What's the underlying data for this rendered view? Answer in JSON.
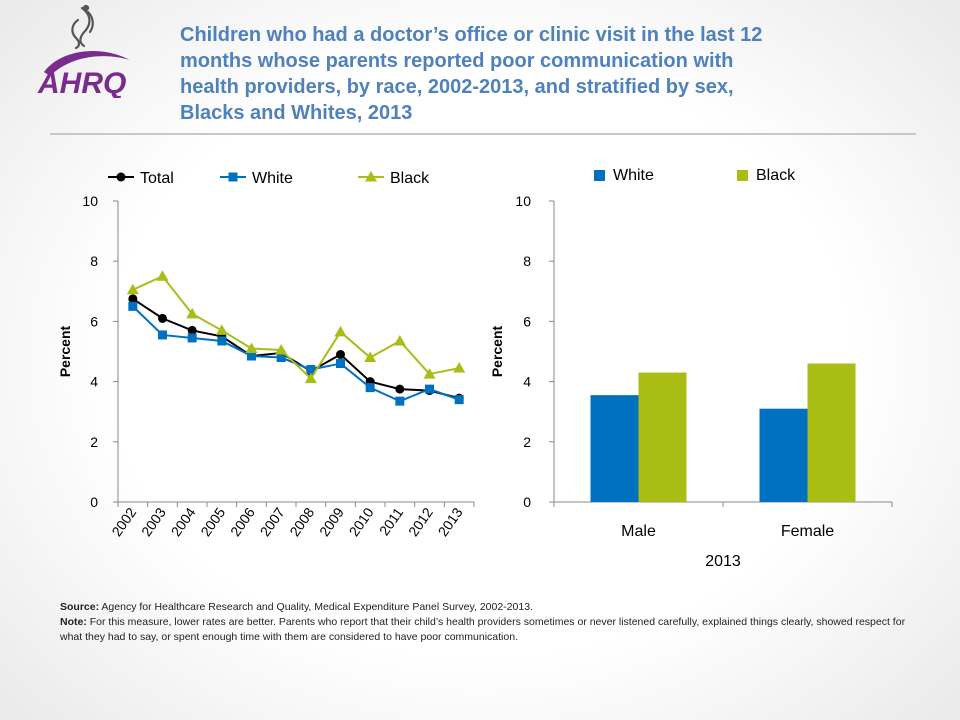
{
  "header": {
    "title_lines": [
      "Children who had a doctor’s office or clinic visit in the last 12",
      "months whose parents reported poor communication with",
      "health providers, by race, 2002-2013, and stratified by sex,",
      "Blacks and Whites, 2013"
    ],
    "logo_text": "AHRQ"
  },
  "colors": {
    "total": "#000000",
    "white": "#0070c0",
    "black": "#a9bd15",
    "title": "#4f81bd"
  },
  "chart_data": [
    {
      "type": "line",
      "x": [
        "2002",
        "2003",
        "2004",
        "2005",
        "2006",
        "2007",
        "2008",
        "2009",
        "2010",
        "2011",
        "2012",
        "2013"
      ],
      "series": [
        {
          "name": "Total",
          "marker": "circle",
          "values": [
            6.75,
            6.1,
            5.7,
            5.5,
            4.85,
            4.95,
            4.35,
            4.9,
            4.0,
            3.75,
            3.7,
            3.45
          ]
        },
        {
          "name": "White",
          "marker": "square",
          "values": [
            6.5,
            5.55,
            5.45,
            5.35,
            4.85,
            4.8,
            4.4,
            4.6,
            3.8,
            3.35,
            3.75,
            3.4
          ]
        },
        {
          "name": "Black",
          "marker": "triangle",
          "values": [
            7.05,
            7.5,
            6.25,
            5.7,
            5.1,
            5.05,
            4.1,
            5.65,
            4.8,
            5.35,
            4.25,
            4.45
          ]
        }
      ],
      "ylabel": "Percent",
      "xlabel": "",
      "ylim": [
        0,
        10
      ],
      "yticks": [
        "0",
        "2",
        "4",
        "6",
        "8",
        "10"
      ],
      "legend": "top",
      "grid": false
    },
    {
      "type": "bar",
      "categories": [
        "Male",
        "Female"
      ],
      "series": [
        {
          "name": "White",
          "values": [
            3.55,
            3.1
          ]
        },
        {
          "name": "Black",
          "values": [
            4.3,
            4.6
          ]
        }
      ],
      "ylabel": "Percent",
      "xlabel": "2013",
      "ylim": [
        0,
        10
      ],
      "yticks": [
        "0",
        "2",
        "4",
        "6",
        "8",
        "10"
      ],
      "legend": "top",
      "grid": false
    }
  ],
  "footnotes": {
    "source_label": "Source:",
    "source_text": " Agency for Healthcare Research and Quality, Medical Expenditure Panel Survey, 2002-2013.",
    "note_label": "Note:",
    "note_text": " For this measure, lower rates are better. Parents who report that their child’s health providers sometimes or never listened carefully, explained things clearly, showed respect for what they had to say, or spent enough time with them are considered to have poor communication."
  }
}
